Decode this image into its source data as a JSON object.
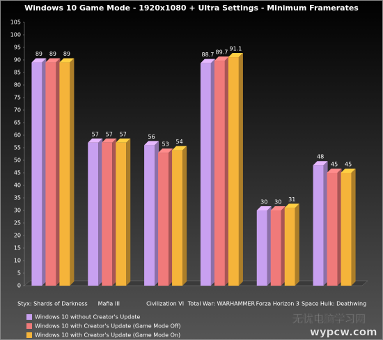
{
  "chart_data": {
    "type": "bar3d",
    "title": "Windows 10 Game Mode - 1920x1080 + Ultra Settings - Minimum Framerates",
    "categories": [
      "Styx: Shards of Darkness",
      "Mafia III",
      "Civilization VI",
      "Total War: WARHAMMER",
      "Forza Horizon 3",
      "Space Hulk: Deathwing"
    ],
    "series": [
      {
        "name": "Windows 10 without Creator's Update",
        "color": "#c8a0f0",
        "values": [
          89,
          57,
          56,
          88.7,
          30,
          48
        ]
      },
      {
        "name": "Windows 10 with Creator's Update (Game Mode Off)",
        "color": "#f07a7a",
        "values": [
          89,
          57,
          53,
          89.7,
          30,
          45
        ]
      },
      {
        "name": "Windows 10 with Creator's Update (Game Mode On)",
        "color": "#f5b43a",
        "values": [
          89,
          57,
          54,
          91.1,
          31,
          45
        ]
      }
    ],
    "ylim": [
      0,
      105
    ],
    "yticks": [
      0,
      5,
      10,
      15,
      20,
      25,
      30,
      35,
      40,
      45,
      50,
      55,
      60,
      65,
      70,
      75,
      80,
      85,
      90,
      95,
      100,
      105
    ],
    "grid": false
  },
  "watermark": [
    "无忧电脑学习网",
    "wypcw.com"
  ]
}
